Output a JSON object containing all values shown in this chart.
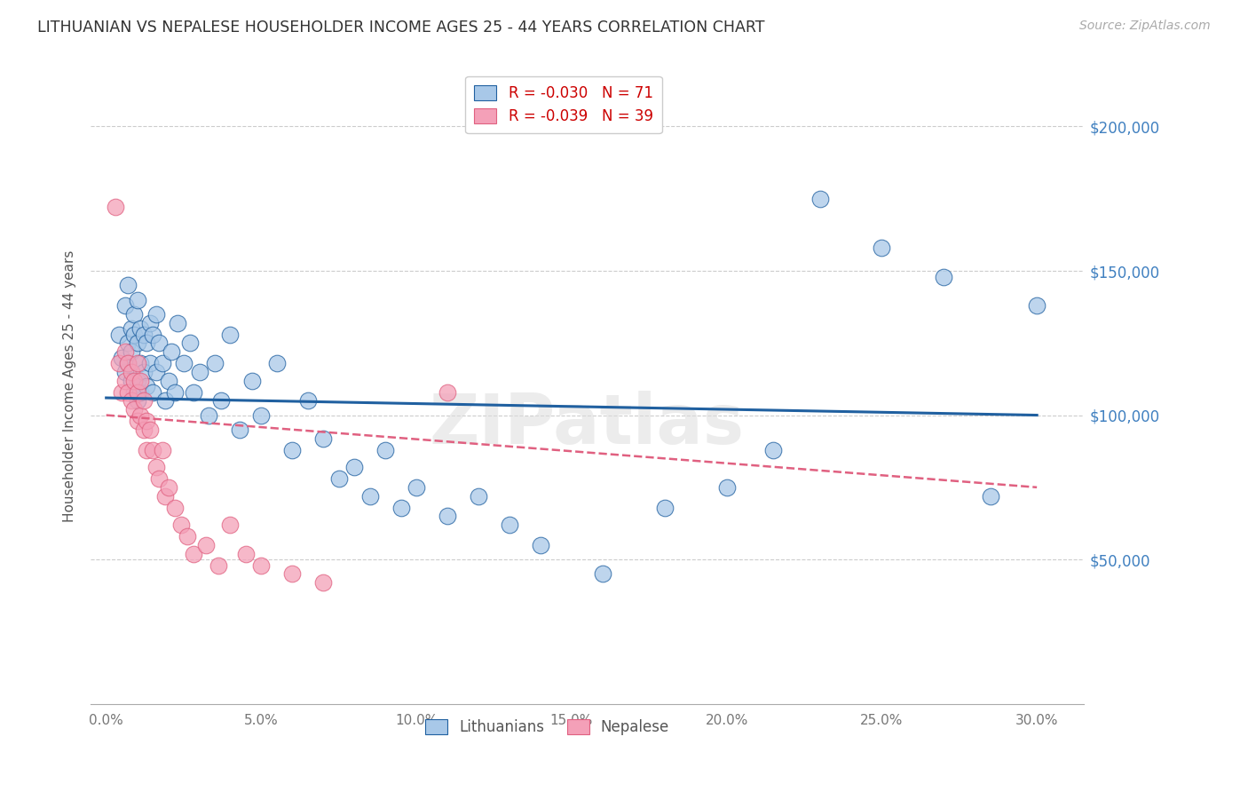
{
  "title": "LITHUANIAN VS NEPALESE HOUSEHOLDER INCOME AGES 25 - 44 YEARS CORRELATION CHART",
  "source": "Source: ZipAtlas.com",
  "ylabel": "Householder Income Ages 25 - 44 years",
  "xlabel_ticks": [
    "0.0%",
    "5.0%",
    "10.0%",
    "15.0%",
    "20.0%",
    "25.0%",
    "30.0%"
  ],
  "xlabel_vals": [
    0.0,
    0.05,
    0.1,
    0.15,
    0.2,
    0.25,
    0.3
  ],
  "ytick_labels": [
    "$50,000",
    "$100,000",
    "$150,000",
    "$200,000"
  ],
  "ytick_vals": [
    50000,
    100000,
    150000,
    200000
  ],
  "ylim": [
    0,
    220000
  ],
  "xlim": [
    -0.005,
    0.315
  ],
  "legend_r_blue": "-0.030",
  "legend_n_blue": "71",
  "legend_r_pink": "-0.039",
  "legend_n_pink": "39",
  "blue_color": "#a8c8e8",
  "pink_color": "#f4a0b8",
  "blue_line_color": "#2060a0",
  "pink_line_color": "#e06080",
  "watermark": "ZIPatlas",
  "lithuanians_x": [
    0.004,
    0.005,
    0.006,
    0.006,
    0.007,
    0.007,
    0.007,
    0.008,
    0.008,
    0.008,
    0.009,
    0.009,
    0.009,
    0.01,
    0.01,
    0.01,
    0.01,
    0.011,
    0.011,
    0.011,
    0.012,
    0.012,
    0.013,
    0.013,
    0.014,
    0.014,
    0.015,
    0.015,
    0.016,
    0.016,
    0.017,
    0.018,
    0.019,
    0.02,
    0.021,
    0.022,
    0.023,
    0.025,
    0.027,
    0.028,
    0.03,
    0.033,
    0.035,
    0.037,
    0.04,
    0.043,
    0.047,
    0.05,
    0.055,
    0.06,
    0.065,
    0.07,
    0.075,
    0.08,
    0.085,
    0.09,
    0.095,
    0.1,
    0.11,
    0.12,
    0.13,
    0.14,
    0.16,
    0.18,
    0.2,
    0.215,
    0.23,
    0.25,
    0.27,
    0.285,
    0.3
  ],
  "lithuanians_y": [
    128000,
    120000,
    138000,
    115000,
    125000,
    118000,
    145000,
    130000,
    122000,
    112000,
    135000,
    128000,
    108000,
    140000,
    125000,
    112000,
    105000,
    130000,
    118000,
    108000,
    115000,
    128000,
    125000,
    110000,
    118000,
    132000,
    128000,
    108000,
    135000,
    115000,
    125000,
    118000,
    105000,
    112000,
    122000,
    108000,
    132000,
    118000,
    125000,
    108000,
    115000,
    100000,
    118000,
    105000,
    128000,
    95000,
    112000,
    100000,
    118000,
    88000,
    105000,
    92000,
    78000,
    82000,
    72000,
    88000,
    68000,
    75000,
    65000,
    72000,
    62000,
    55000,
    45000,
    68000,
    75000,
    88000,
    175000,
    158000,
    148000,
    72000,
    138000
  ],
  "nepalese_x": [
    0.003,
    0.004,
    0.005,
    0.006,
    0.006,
    0.007,
    0.007,
    0.008,
    0.008,
    0.009,
    0.009,
    0.01,
    0.01,
    0.01,
    0.011,
    0.011,
    0.012,
    0.012,
    0.013,
    0.013,
    0.014,
    0.015,
    0.016,
    0.017,
    0.018,
    0.019,
    0.02,
    0.022,
    0.024,
    0.026,
    0.028,
    0.032,
    0.036,
    0.04,
    0.045,
    0.05,
    0.06,
    0.07,
    0.11
  ],
  "nepalese_y": [
    172000,
    118000,
    108000,
    122000,
    112000,
    118000,
    108000,
    115000,
    105000,
    112000,
    102000,
    118000,
    108000,
    98000,
    112000,
    100000,
    105000,
    95000,
    98000,
    88000,
    95000,
    88000,
    82000,
    78000,
    88000,
    72000,
    75000,
    68000,
    62000,
    58000,
    52000,
    55000,
    48000,
    62000,
    52000,
    48000,
    45000,
    42000,
    108000
  ]
}
